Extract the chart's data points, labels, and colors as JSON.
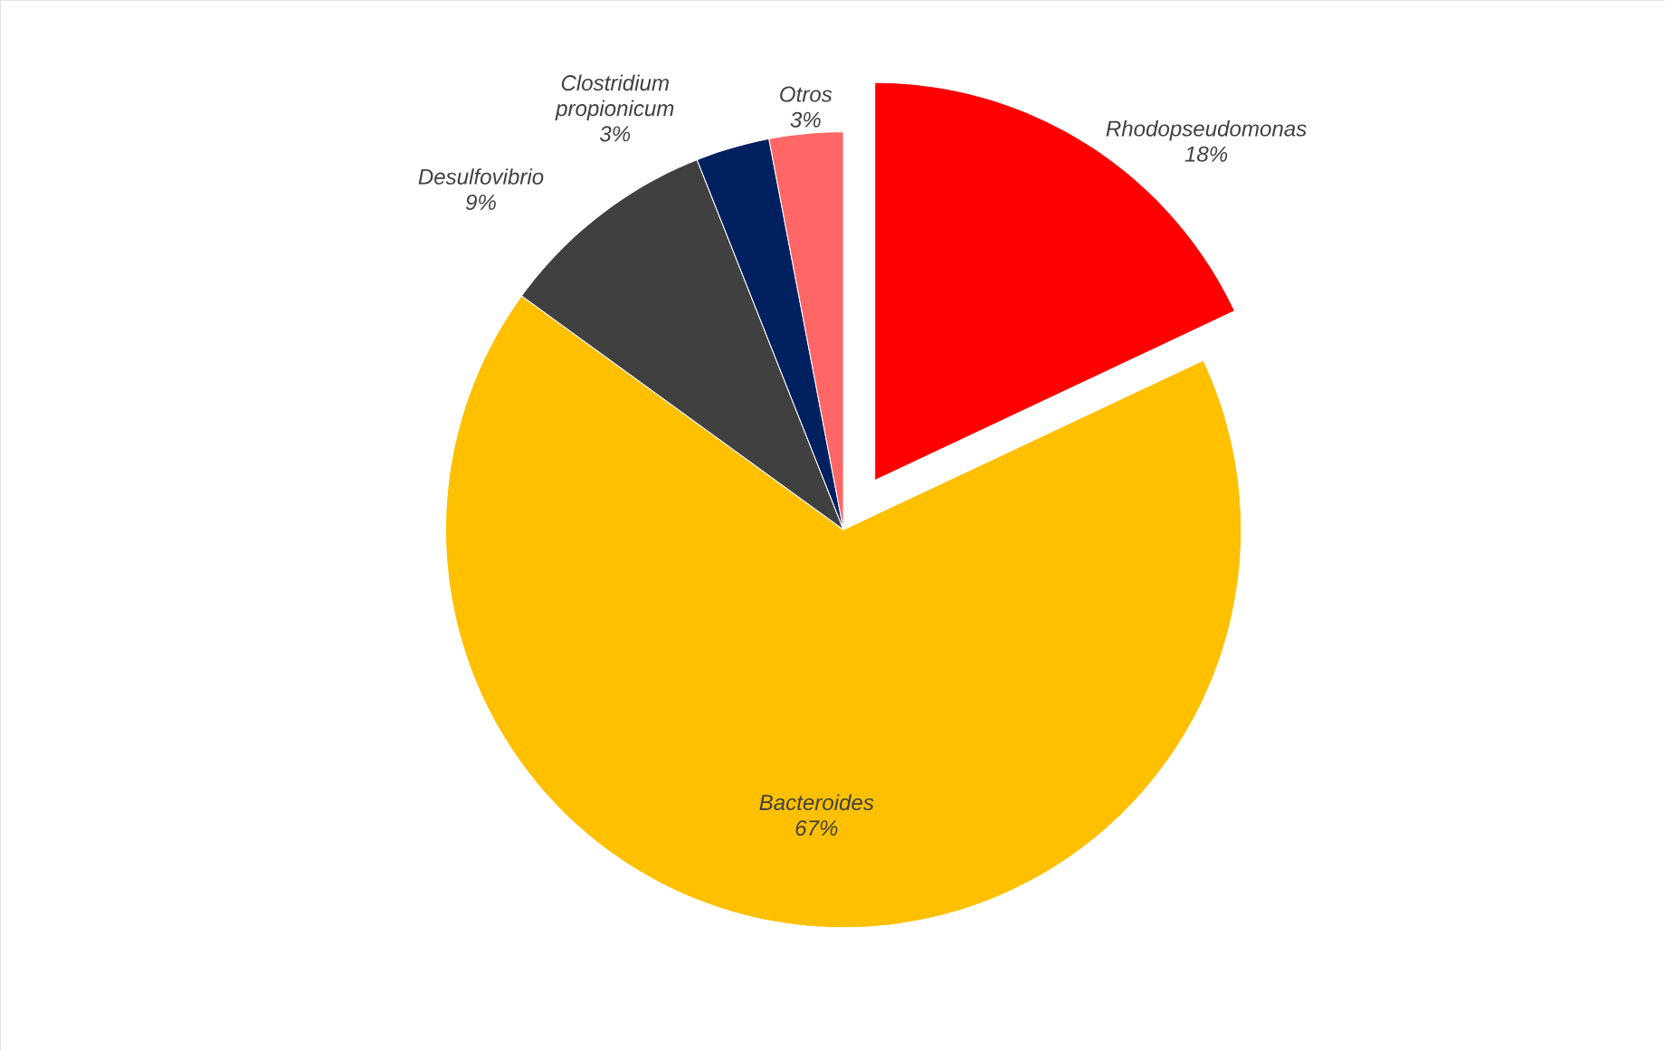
{
  "chart_data": {
    "type": "pie",
    "categories": [
      "Rhodopseudomonas",
      "Bacteroides",
      "Desulfovibrio",
      "Clostridium propionicum",
      "Otros"
    ],
    "values": [
      18,
      67,
      9,
      3,
      3
    ],
    "colors": [
      "#ff0000",
      "#ffc000",
      "#404040",
      "#002060",
      "#ff6666"
    ],
    "value_labels": [
      "18%",
      "67%",
      "9%",
      "3%",
      "3%"
    ]
  }
}
